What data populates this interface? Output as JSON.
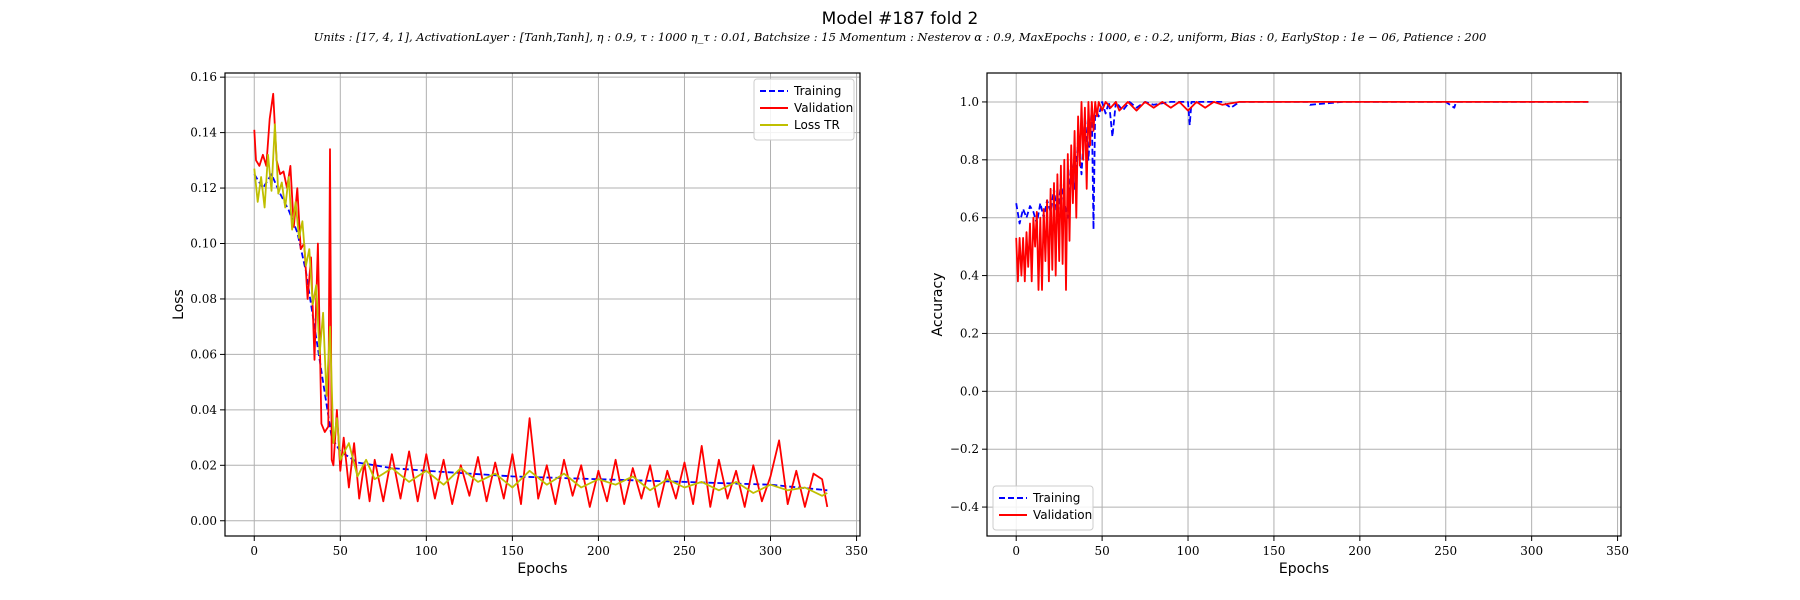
{
  "title": "Model #187 fold 2",
  "subtitle": "Units : [17, 4, 1], ActivationLayer : [Tanh,Tanh], η : 0.9, τ : 1000 η_τ : 0.01, Batchsize : 15 Momentum : Nesterov α : 0.9, MaxEpochs : 1000, ϵ : 0.2, uniform, Bias : 0, EarlyStop : 1e − 06, Patience : 200",
  "colors": {
    "training": "#0000ff",
    "validation": "#ff0000",
    "loss_tr": "#bfbf00",
    "grid": "#b0b0b0"
  },
  "chart_data": [
    {
      "type": "line",
      "xlabel": "Epochs",
      "ylabel": "Loss",
      "xlim": [
        -17,
        352
      ],
      "ylim": [
        -0.0055,
        0.1615
      ],
      "xticks": [
        0,
        50,
        100,
        150,
        200,
        250,
        300,
        350
      ],
      "yticks": [
        0.0,
        0.02,
        0.04,
        0.06,
        0.08,
        0.1,
        0.12,
        0.14,
        0.16
      ],
      "ytick_labels": [
        "0.00",
        "0.02",
        "0.04",
        "0.06",
        "0.08",
        "0.10",
        "0.12",
        "0.14",
        "0.16"
      ],
      "grid": true,
      "legend_position": "top-right",
      "series": [
        {
          "name": "Training",
          "style": "dashed",
          "color": "#0000ff",
          "x": [
            0,
            5,
            10,
            15,
            20,
            25,
            30,
            35,
            40,
            45,
            50,
            60,
            80,
            100,
            150,
            200,
            250,
            300,
            333
          ],
          "y": [
            0.125,
            0.12,
            0.125,
            0.118,
            0.112,
            0.104,
            0.09,
            0.07,
            0.05,
            0.03,
            0.025,
            0.021,
            0.019,
            0.018,
            0.016,
            0.015,
            0.014,
            0.013,
            0.011
          ]
        },
        {
          "name": "Validation",
          "style": "solid",
          "color": "#ff0000",
          "x": [
            0,
            1,
            3,
            5,
            7,
            9,
            11,
            13,
            15,
            17,
            19,
            21,
            23,
            25,
            27,
            29,
            31,
            33,
            35,
            37,
            39,
            41,
            43,
            44,
            45,
            46,
            48,
            50,
            52,
            55,
            58,
            61,
            64,
            67,
            70,
            75,
            80,
            85,
            90,
            95,
            100,
            105,
            110,
            115,
            120,
            125,
            130,
            135,
            140,
            145,
            150,
            155,
            160,
            165,
            170,
            175,
            180,
            185,
            190,
            195,
            200,
            205,
            210,
            215,
            220,
            225,
            230,
            235,
            240,
            245,
            250,
            255,
            260,
            265,
            270,
            275,
            280,
            285,
            290,
            295,
            300,
            305,
            310,
            315,
            320,
            325,
            330,
            333
          ],
          "y": [
            0.141,
            0.13,
            0.128,
            0.132,
            0.128,
            0.145,
            0.154,
            0.13,
            0.125,
            0.126,
            0.12,
            0.128,
            0.106,
            0.12,
            0.098,
            0.1,
            0.08,
            0.095,
            0.058,
            0.1,
            0.035,
            0.032,
            0.034,
            0.134,
            0.022,
            0.02,
            0.04,
            0.018,
            0.03,
            0.012,
            0.028,
            0.008,
            0.021,
            0.007,
            0.022,
            0.007,
            0.024,
            0.008,
            0.025,
            0.007,
            0.024,
            0.008,
            0.022,
            0.006,
            0.02,
            0.009,
            0.023,
            0.007,
            0.021,
            0.008,
            0.024,
            0.006,
            0.037,
            0.008,
            0.02,
            0.006,
            0.022,
            0.009,
            0.02,
            0.005,
            0.018,
            0.007,
            0.022,
            0.006,
            0.019,
            0.008,
            0.02,
            0.005,
            0.018,
            0.008,
            0.021,
            0.006,
            0.027,
            0.005,
            0.022,
            0.008,
            0.018,
            0.005,
            0.02,
            0.007,
            0.016,
            0.029,
            0.006,
            0.018,
            0.005,
            0.017,
            0.015,
            0.005
          ]
        },
        {
          "name": "Loss TR",
          "style": "solid",
          "color": "#bfbf00",
          "x": [
            0,
            2,
            4,
            6,
            8,
            10,
            12,
            14,
            16,
            18,
            20,
            22,
            24,
            26,
            28,
            30,
            32,
            34,
            36,
            38,
            40,
            42,
            44,
            46,
            48,
            50,
            55,
            60,
            65,
            70,
            80,
            90,
            100,
            110,
            120,
            130,
            140,
            150,
            160,
            170,
            180,
            190,
            200,
            210,
            220,
            230,
            240,
            250,
            260,
            270,
            280,
            290,
            300,
            310,
            320,
            330,
            333
          ],
          "y": [
            0.127,
            0.115,
            0.124,
            0.113,
            0.132,
            0.119,
            0.143,
            0.118,
            0.122,
            0.113,
            0.124,
            0.105,
            0.115,
            0.102,
            0.108,
            0.092,
            0.098,
            0.078,
            0.085,
            0.06,
            0.075,
            0.045,
            0.07,
            0.028,
            0.037,
            0.022,
            0.028,
            0.016,
            0.022,
            0.015,
            0.019,
            0.014,
            0.018,
            0.013,
            0.019,
            0.014,
            0.017,
            0.012,
            0.018,
            0.013,
            0.017,
            0.012,
            0.015,
            0.013,
            0.016,
            0.011,
            0.015,
            0.012,
            0.014,
            0.011,
            0.014,
            0.01,
            0.013,
            0.011,
            0.012,
            0.009,
            0.01
          ]
        }
      ]
    },
    {
      "type": "line",
      "xlabel": "Epochs",
      "ylabel": "Accuracy",
      "xlim": [
        -17,
        352
      ],
      "ylim": [
        -0.5,
        1.1
      ],
      "xticks": [
        0,
        50,
        100,
        150,
        200,
        250,
        300,
        350
      ],
      "yticks": [
        -0.4,
        -0.2,
        0.0,
        0.2,
        0.4,
        0.6,
        0.8,
        1.0
      ],
      "ytick_labels": [
        "−0.4",
        "−0.2",
        "0.0",
        "0.2",
        "0.4",
        "0.6",
        "0.8",
        "1.0"
      ],
      "grid": true,
      "legend_position": "bottom-left",
      "series": [
        {
          "name": "Training",
          "style": "dashed",
          "color": "#0000ff",
          "x": [
            0,
            2,
            4,
            6,
            8,
            10,
            12,
            14,
            16,
            18,
            20,
            22,
            24,
            26,
            28,
            30,
            32,
            34,
            36,
            38,
            40,
            42,
            44,
            45,
            46,
            48,
            50,
            52,
            54,
            56,
            58,
            62,
            66,
            70,
            75,
            80,
            90,
            100,
            101,
            102,
            110,
            120,
            125,
            130,
            150,
            170,
            171,
            190,
            200,
            250,
            255,
            256,
            300,
            333
          ],
          "y": [
            0.65,
            0.58,
            0.63,
            0.6,
            0.64,
            0.62,
            0.58,
            0.65,
            0.6,
            0.66,
            0.62,
            0.7,
            0.6,
            0.72,
            0.65,
            0.6,
            0.8,
            0.7,
            0.87,
            0.75,
            0.95,
            0.8,
            0.98,
            0.56,
            0.98,
            0.95,
            1.0,
            0.96,
            1.0,
            0.88,
            1.0,
            0.97,
            1.0,
            0.98,
            1.0,
            0.99,
            1.0,
            1.0,
            0.92,
            1.0,
            1.0,
            1.0,
            0.98,
            1.0,
            1.0,
            1.0,
            0.99,
            1.0,
            1.0,
            1.0,
            0.98,
            1.0,
            1.0,
            1.0
          ]
        },
        {
          "name": "Validation",
          "style": "solid",
          "color": "#ff0000",
          "x": [
            0,
            1,
            2,
            3,
            4,
            5,
            6,
            7,
            8,
            9,
            10,
            11,
            12,
            13,
            14,
            15,
            16,
            17,
            18,
            19,
            20,
            21,
            22,
            23,
            24,
            25,
            26,
            27,
            28,
            29,
            30,
            31,
            32,
            33,
            34,
            35,
            36,
            37,
            38,
            39,
            40,
            41,
            42,
            43,
            44,
            45,
            46,
            47,
            48,
            50,
            52,
            55,
            58,
            60,
            65,
            70,
            75,
            80,
            85,
            90,
            95,
            100,
            105,
            110,
            115,
            120,
            130,
            140,
            200,
            250,
            300,
            333
          ],
          "y": [
            0.53,
            0.38,
            0.53,
            0.4,
            0.53,
            0.38,
            0.55,
            0.43,
            0.58,
            0.38,
            0.6,
            0.5,
            0.62,
            0.35,
            0.6,
            0.35,
            0.63,
            0.45,
            0.66,
            0.38,
            0.7,
            0.42,
            0.72,
            0.4,
            0.75,
            0.45,
            0.78,
            0.44,
            0.8,
            0.35,
            0.82,
            0.52,
            0.85,
            0.65,
            0.9,
            0.6,
            0.95,
            0.78,
            1.0,
            0.8,
            0.98,
            0.7,
            1.0,
            0.85,
            1.0,
            0.9,
            1.0,
            0.95,
            1.0,
            0.97,
            1.0,
            0.98,
            1.0,
            0.97,
            1.0,
            0.97,
            1.0,
            0.98,
            1.0,
            0.98,
            1.0,
            0.97,
            1.0,
            0.98,
            1.0,
            0.99,
            1.0,
            1.0,
            1.0,
            1.0,
            1.0,
            1.0
          ]
        }
      ]
    }
  ]
}
